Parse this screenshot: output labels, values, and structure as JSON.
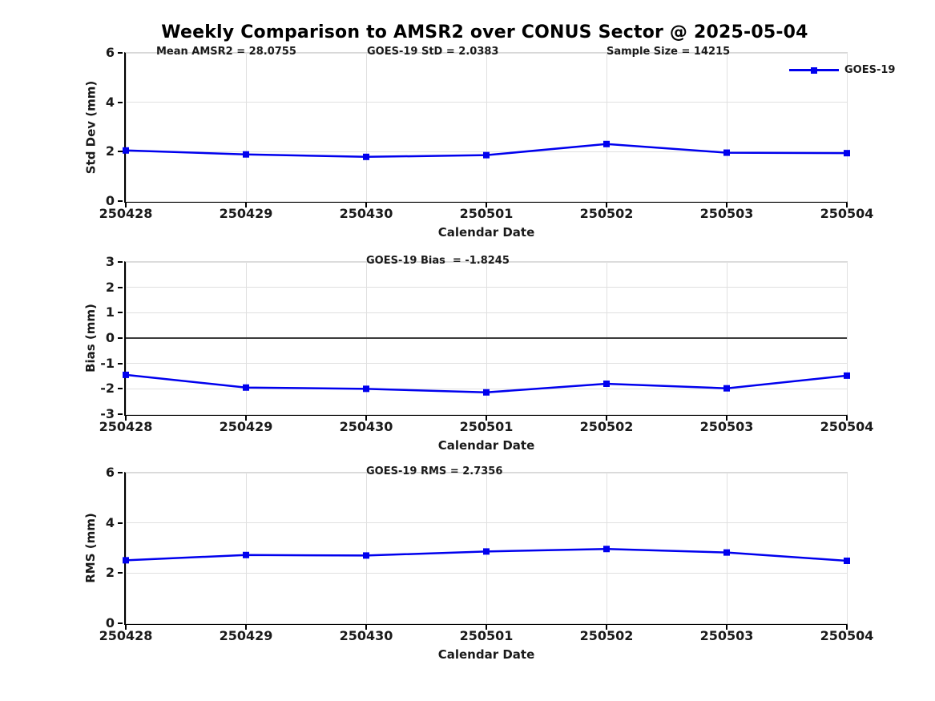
{
  "title": "Weekly Comparison to AMSR2 over CONUS Sector @ 2025-05-04",
  "legend": {
    "label": "GOES-19"
  },
  "colors": {
    "line": "#0000ee",
    "marker": "#0000ee",
    "grid": "#e0e0e0",
    "zero_line": "#3a3a3a",
    "axis": "#000000",
    "text": "#1a1a1a"
  },
  "chart_data": [
    {
      "type": "line",
      "name": "std-dev",
      "ylabel": "Std Dev (mm)",
      "xlabel": "Calendar Date",
      "categories": [
        "250428",
        "250429",
        "250430",
        "250501",
        "250502",
        "250503",
        "250504"
      ],
      "series": [
        {
          "name": "GOES-19",
          "values": [
            2.05,
            1.89,
            1.79,
            1.86,
            2.31,
            1.96,
            1.94
          ]
        }
      ],
      "ylim": [
        0,
        6
      ],
      "yticks": [
        0,
        2,
        4,
        6
      ],
      "grid": true,
      "legend_position": "top-right",
      "annotations": [
        {
          "text": "Mean AMSR2 = 28.0755"
        },
        {
          "text": "GOES-19 StD = 2.0383"
        },
        {
          "text": "Sample Size = 14215"
        }
      ]
    },
    {
      "type": "line",
      "name": "bias",
      "ylabel": "Bias (mm)",
      "xlabel": "Calendar Date",
      "categories": [
        "250428",
        "250429",
        "250430",
        "250501",
        "250502",
        "250503",
        "250504"
      ],
      "series": [
        {
          "name": "GOES-19",
          "values": [
            -1.45,
            -1.95,
            -2.0,
            -2.14,
            -1.8,
            -1.98,
            -1.48
          ]
        }
      ],
      "ylim": [
        -3,
        3
      ],
      "yticks": [
        -3,
        -2,
        -1,
        0,
        1,
        2,
        3
      ],
      "grid": true,
      "zero_line": true,
      "annotations": [
        {
          "text": "GOES-19 Bias  = -1.8245"
        }
      ]
    },
    {
      "type": "line",
      "name": "rms",
      "ylabel": "RMS (mm)",
      "xlabel": "Calendar Date",
      "categories": [
        "250428",
        "250429",
        "250430",
        "250501",
        "250502",
        "250503",
        "250504"
      ],
      "series": [
        {
          "name": "GOES-19",
          "values": [
            2.51,
            2.72,
            2.7,
            2.86,
            2.96,
            2.82,
            2.49
          ]
        }
      ],
      "ylim": [
        0,
        6
      ],
      "yticks": [
        0,
        2,
        4,
        6
      ],
      "grid": true,
      "annotations": [
        {
          "text": "GOES-19 RMS = 2.7356"
        }
      ]
    }
  ]
}
